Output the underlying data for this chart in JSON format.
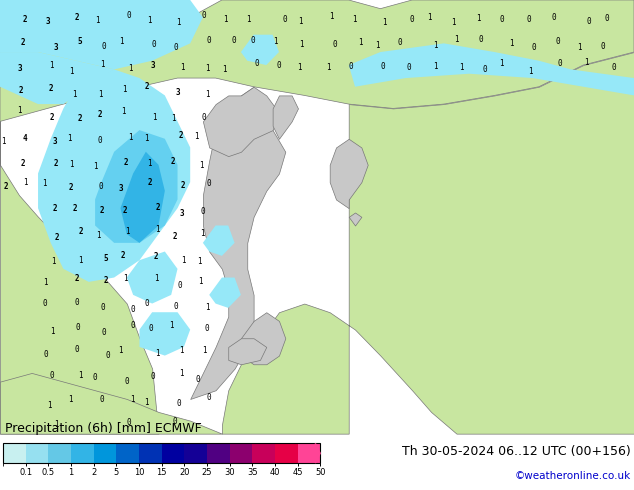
{
  "title_left": "Precipitation (6h) [mm] ECMWF",
  "title_right": "Th 30-05-2024 06..12 UTC (00+156)",
  "credit": "©weatheronline.co.uk",
  "colorbar_bounds": [
    0,
    0.1,
    0.5,
    1,
    2,
    5,
    10,
    15,
    20,
    25,
    30,
    35,
    40,
    45,
    50
  ],
  "colorbar_tick_labels": [
    "0.1",
    "0.5",
    "1",
    "2",
    "5",
    "10",
    "15",
    "20",
    "25",
    "30",
    "35",
    "40",
    "45",
    "50"
  ],
  "colorbar_colors": [
    "#c8f0f0",
    "#96e0f0",
    "#64c8e6",
    "#32b4e6",
    "#0096dc",
    "#0064c8",
    "#0032b4",
    "#0000a0",
    "#140096",
    "#500082",
    "#8c006e",
    "#c8005a",
    "#e60046",
    "#ff4496"
  ],
  "sea_color": "#a0d8ef",
  "land_color": "#c8e6a0",
  "grey_land_color": "#c8c8c8",
  "border_color": "#787878",
  "precip_colors": {
    "light": "#96e8f8",
    "medium_light": "#64d0f0",
    "medium": "#32b4e6",
    "medium_dark": "#1496dc"
  },
  "title_fontsize": 9,
  "credit_color": "#0000cc",
  "fig_width": 6.34,
  "fig_height": 4.9,
  "dpi": 100
}
